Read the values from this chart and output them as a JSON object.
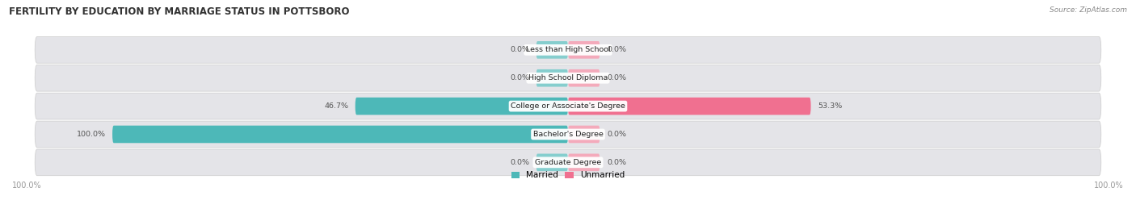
{
  "title": "FERTILITY BY EDUCATION BY MARRIAGE STATUS IN POTTSBORO",
  "source": "Source: ZipAtlas.com",
  "categories": [
    "Less than High School",
    "High School Diploma",
    "College or Associate's Degree",
    "Bachelor's Degree",
    "Graduate Degree"
  ],
  "married_values": [
    0.0,
    0.0,
    46.7,
    100.0,
    0.0
  ],
  "unmarried_values": [
    0.0,
    0.0,
    53.3,
    0.0,
    0.0
  ],
  "married_color": "#4db8b8",
  "unmarried_color": "#f07090",
  "stub_married_color": "#85cece",
  "stub_unmarried_color": "#f4aabb",
  "bar_bg_color": "#e4e4e8",
  "label_color": "#555555",
  "title_color": "#333333",
  "axis_label_color": "#999999",
  "max_value": 100.0,
  "stub_size": 7.0,
  "legend_labels": [
    "Married",
    "Unmarried"
  ],
  "bottom_labels": [
    "100.0%",
    "100.0%"
  ]
}
